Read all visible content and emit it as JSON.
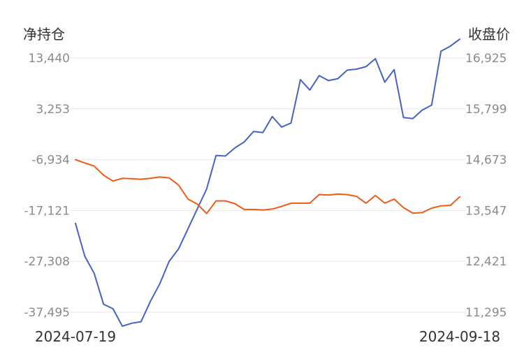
{
  "chart_data": {
    "type": "line",
    "left_axis_title": "净持仓",
    "right_axis_title": "收盘价",
    "x_range_labels": [
      "2024-07-19",
      "2024-09-18"
    ],
    "left_axis": {
      "ticks": [
        13440,
        3253,
        -6934,
        -17121,
        -27308,
        -37495
      ],
      "tick_labels": [
        "13,440",
        "3,253",
        "-6,934",
        "-17,121",
        "-27,308",
        "-37,495"
      ],
      "ylim": [
        -37495,
        13440
      ]
    },
    "right_axis": {
      "ticks": [
        16925,
        15799,
        14673,
        13547,
        12421,
        11295
      ],
      "tick_labels": [
        "16,925",
        "15,799",
        "14,673",
        "13,547",
        "12,421",
        "11,295"
      ],
      "ylim": [
        11295,
        16925
      ]
    },
    "grid": true,
    "series": [
      {
        "key": "net_position",
        "axis": "left",
        "color": "#4562c4",
        "values": [
          -19700,
          -26300,
          -29700,
          -35900,
          -36800,
          -40300,
          -39700,
          -39400,
          -35300,
          -31800,
          -27300,
          -24800,
          -20800,
          -16800,
          -12800,
          -6100,
          -6200,
          -4600,
          -3400,
          -1300,
          -1500,
          1700,
          -400,
          400,
          9100,
          7000,
          9900,
          8900,
          9300,
          11000,
          11200,
          11700,
          13300,
          8600,
          11100,
          1500,
          1300,
          3000,
          4000,
          14800,
          15800,
          17200
        ]
      },
      {
        "key": "close_price",
        "axis": "right",
        "color": "#f05a14",
        "values": [
          14673,
          14600,
          14530,
          14330,
          14200,
          14260,
          14250,
          14240,
          14260,
          14290,
          14270,
          14110,
          13800,
          13690,
          13480,
          13760,
          13760,
          13700,
          13570,
          13570,
          13560,
          13580,
          13640,
          13710,
          13710,
          13710,
          13900,
          13890,
          13910,
          13900,
          13860,
          13710,
          13880,
          13710,
          13800,
          13610,
          13490,
          13500,
          13600,
          13650,
          13660,
          13850
        ]
      }
    ]
  }
}
